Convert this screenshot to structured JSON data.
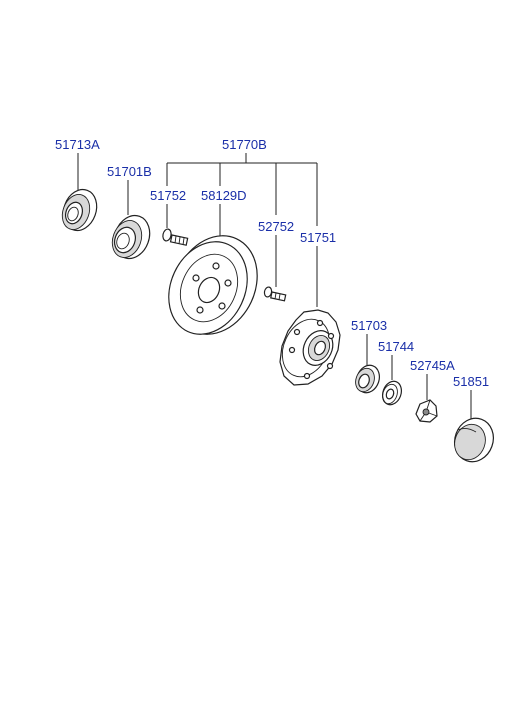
{
  "labels": {
    "p51713A": "51713A",
    "p51770B": "51770B",
    "p51701B": "51701B",
    "p51752": "51752",
    "p58129D": "58129D",
    "p52752": "52752",
    "p51751": "51751",
    "p51703": "51703",
    "p51744": "51744",
    "p52745A": "52745A",
    "p51851": "51851"
  }
}
